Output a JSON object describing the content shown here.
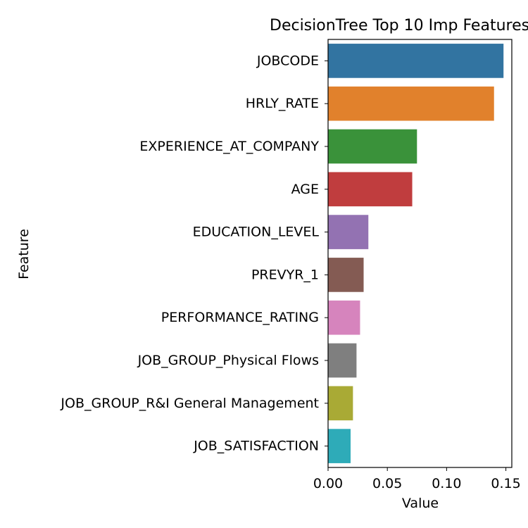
{
  "chart_data": {
    "type": "bar",
    "orientation": "horizontal",
    "title": "DecisionTree Top 10 Imp Features",
    "xlabel": "Value",
    "ylabel": "Feature",
    "xlim": [
      0.0,
      0.155
    ],
    "xticks": [
      0.0,
      0.05,
      0.1,
      0.15
    ],
    "xtick_labels": [
      "0.00",
      "0.05",
      "0.10",
      "0.15"
    ],
    "grid": false,
    "categories": [
      "JOBCODE",
      "HRLY_RATE",
      "EXPERIENCE_AT_COMPANY",
      "AGE",
      "EDUCATION_LEVEL",
      "PREVYR_1",
      "PERFORMANCE_RATING",
      "JOB_GROUP_Physical Flows",
      "JOB_GROUP_R&I General Management",
      "JOB_SATISFACTION"
    ],
    "values": [
      0.148,
      0.14,
      0.075,
      0.071,
      0.034,
      0.03,
      0.027,
      0.024,
      0.021,
      0.019
    ],
    "colors": [
      "#3274a1",
      "#e1812c",
      "#3a923a",
      "#c03d3e",
      "#9372b2",
      "#845b53",
      "#d684bd",
      "#7f7f7f",
      "#a9aa35",
      "#2eabb8"
    ]
  }
}
